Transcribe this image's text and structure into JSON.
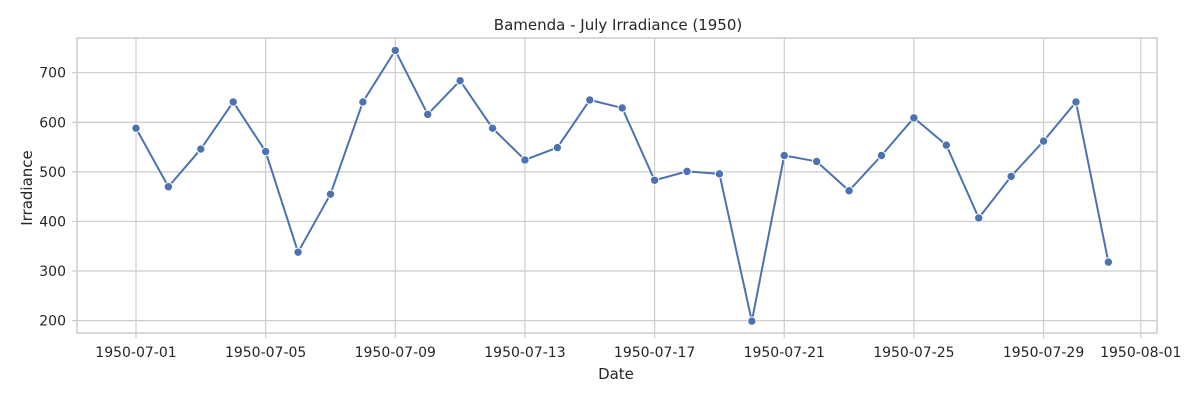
{
  "chart_data": {
    "type": "line",
    "title": "Bamenda - July Irradiance (1950)",
    "xlabel": "Date",
    "ylabel": "Irradiance",
    "x": [
      "1950-07-01",
      "1950-07-02",
      "1950-07-03",
      "1950-07-04",
      "1950-07-05",
      "1950-07-06",
      "1950-07-07",
      "1950-07-08",
      "1950-07-09",
      "1950-07-10",
      "1950-07-11",
      "1950-07-12",
      "1950-07-13",
      "1950-07-14",
      "1950-07-15",
      "1950-07-16",
      "1950-07-17",
      "1950-07-18",
      "1950-07-19",
      "1950-07-20",
      "1950-07-21",
      "1950-07-22",
      "1950-07-23",
      "1950-07-24",
      "1950-07-25",
      "1950-07-26",
      "1950-07-27",
      "1950-07-28",
      "1950-07-29",
      "1950-07-30",
      "1950-07-31"
    ],
    "series": [
      {
        "values": [
          588,
          470,
          546,
          641,
          541,
          338,
          455,
          641,
          745,
          616,
          684,
          588,
          524,
          549,
          645,
          629,
          483,
          501,
          496,
          199,
          533,
          521,
          462,
          533,
          609,
          554,
          407,
          491,
          562,
          641,
          318
        ],
        "color": "#4c72b0"
      }
    ],
    "xlim": [
      "1950-06-29",
      "1950-08-01"
    ],
    "ylim": [
      175,
      770
    ],
    "x_ticks": [
      "1950-07-01",
      "1950-07-05",
      "1950-07-09",
      "1950-07-13",
      "1950-07-17",
      "1950-07-21",
      "1950-07-25",
      "1950-07-29",
      "1950-08-01"
    ],
    "y_ticks": [
      200,
      300,
      400,
      500,
      600,
      700
    ],
    "grid": true,
    "legend": "none"
  }
}
